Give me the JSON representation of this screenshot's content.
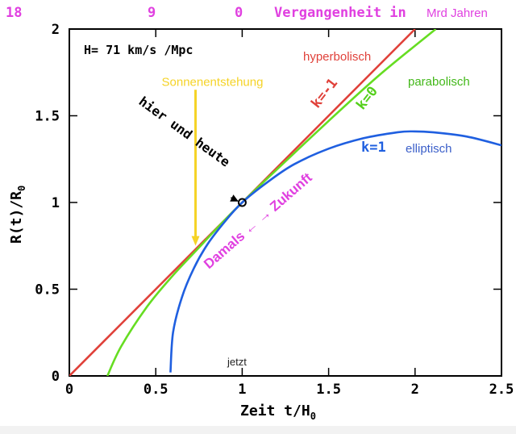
{
  "chart_data": {
    "type": "line",
    "xlabel": "Zeit t/H",
    "xlabel_sub": "0",
    "ylabel": "R(t)/R",
    "ylabel_sub": "0",
    "xlim": [
      0,
      2.5
    ],
    "ylim": [
      0,
      2
    ],
    "x_ticks": [
      "0",
      "0.5",
      "1",
      "1.5",
      "2",
      "2.5"
    ],
    "y_ticks": [
      "0",
      "0.5",
      "1",
      "1.5",
      "2"
    ],
    "top_axis": {
      "ticks": [
        "18",
        "9",
        "0"
      ],
      "label": "Vergangenheit in",
      "unit": "Mrd Jahren"
    },
    "hubble": "H= 71 km/s /Mpc",
    "series": [
      {
        "name": "k=-1",
        "description": "hyperbolisch",
        "color": "#e0413a",
        "x": [
          0,
          0.5,
          1.0,
          1.5,
          2.0
        ],
        "y": [
          0,
          0.5,
          1.0,
          1.5,
          2.0
        ]
      },
      {
        "name": "k=0",
        "description": "parabolisch",
        "color": "#66dd22",
        "x": [
          0.22,
          0.3,
          0.45,
          0.6,
          0.75,
          0.9,
          1.0,
          1.2,
          1.5,
          1.8,
          2.12
        ],
        "y": [
          0,
          0.17,
          0.4,
          0.58,
          0.74,
          0.9,
          1.0,
          1.19,
          1.47,
          1.74,
          2.0
        ]
      },
      {
        "name": "k=1",
        "description": "elliptisch",
        "color": "#1f5fe0",
        "x": [
          0.585,
          0.6,
          0.65,
          0.72,
          0.8,
          0.9,
          1.0,
          1.15,
          1.3,
          1.5,
          1.7,
          1.9,
          2.0,
          2.1,
          2.3,
          2.5
        ],
        "y": [
          0.02,
          0.25,
          0.45,
          0.62,
          0.76,
          0.89,
          1.0,
          1.12,
          1.22,
          1.31,
          1.37,
          1.405,
          1.41,
          1.405,
          1.38,
          1.33
        ]
      }
    ],
    "sun_formation": {
      "label": "Sonnenentstehung",
      "x": 0.73,
      "y_top": 1.65,
      "y_bottom": 0.76,
      "color": "#f5d327"
    },
    "now_marker": {
      "x": 1.0,
      "y": 1.0,
      "label": "hier und heute"
    },
    "annotations": {
      "jetzt": "jetzt",
      "damals_zukunft": "Damals ← → Zukunft"
    }
  }
}
